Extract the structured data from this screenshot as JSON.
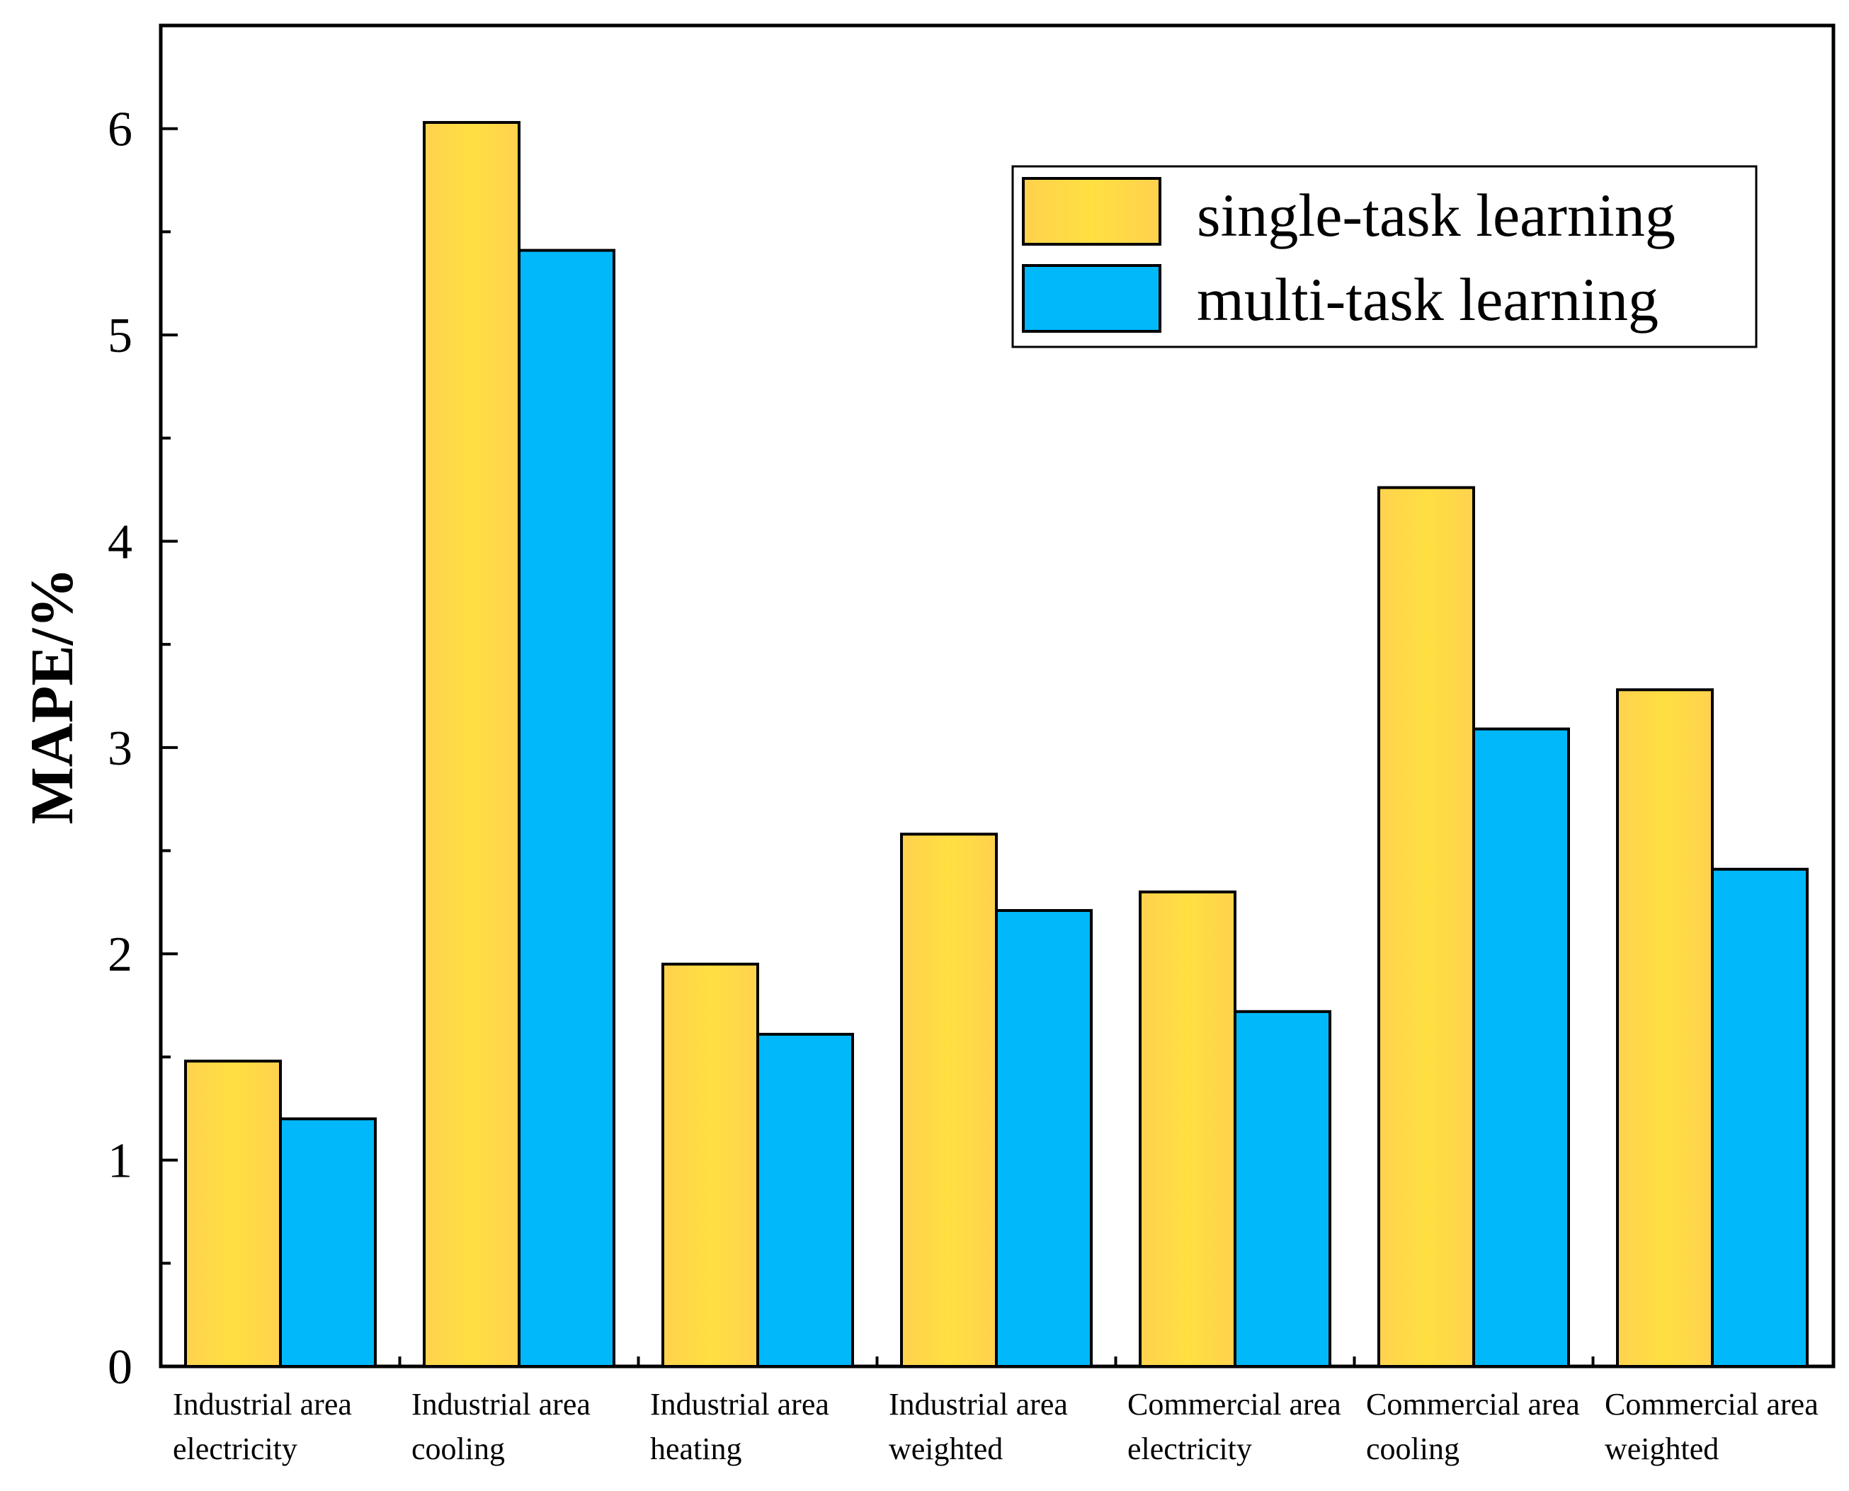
{
  "chart_data": {
    "type": "bar",
    "title": "",
    "xlabel": "",
    "ylabel": "MAPE/%",
    "ylim": [
      0,
      6.5
    ],
    "yticks": [
      0,
      1,
      2,
      3,
      4,
      5,
      6
    ],
    "grid": false,
    "legend_position": "top-right",
    "categories": [
      [
        "Industrial area",
        "electricity"
      ],
      [
        "Industrial area",
        "cooling"
      ],
      [
        "Industrial area",
        "heating"
      ],
      [
        "Industrial area",
        "weighted"
      ],
      [
        "Commercial area",
        "electricity"
      ],
      [
        "Commercial area",
        "cooling"
      ],
      [
        "Commercial area",
        "weighted"
      ]
    ],
    "series": [
      {
        "name": "single-task learning",
        "color": "#FFD84A",
        "values": [
          1.48,
          6.03,
          1.95,
          2.58,
          2.3,
          4.26,
          3.28
        ]
      },
      {
        "name": "multi-task learning",
        "color": "#00B8FA",
        "values": [
          1.2,
          5.41,
          1.61,
          2.21,
          1.72,
          3.09,
          2.41
        ]
      }
    ]
  }
}
